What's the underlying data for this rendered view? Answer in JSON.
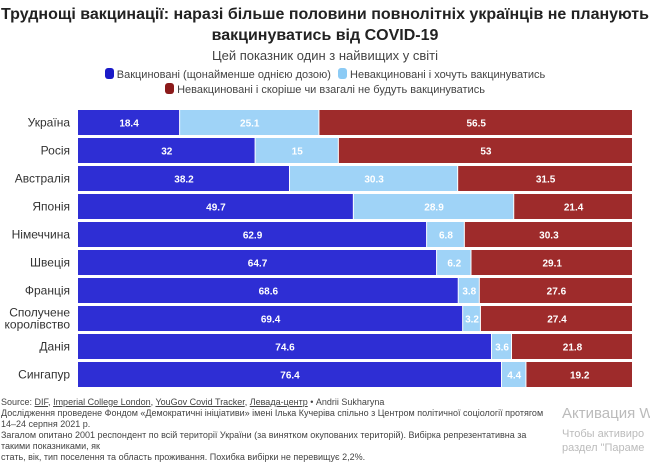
{
  "chart_data": {
    "type": "bar",
    "orientation": "horizontal",
    "stacked": true,
    "title": "Труднощі вакцинації: наразі більше половини повнолітніх українців не планують вакцинуватись від COVID-19",
    "subtitle": "Цей показник один з найвищих у світі",
    "categories": [
      "Україна",
      "Росія",
      "Австралія",
      "Японія",
      "Німеччина",
      "Швеція",
      "Франція",
      "Сполучене королівство",
      "Данія",
      "Сингапур"
    ],
    "series": [
      {
        "name": "Вакциновані (щонайменше однією дозою)",
        "color": "#2e2ed4",
        "values": [
          18.4,
          32,
          38.2,
          49.7,
          62.9,
          64.7,
          68.6,
          69.4,
          74.6,
          76.4
        ]
      },
      {
        "name": "Невакциновані і хочуть вакцинуватись",
        "color": "#9fd3f7",
        "values": [
          25.1,
          15,
          30.3,
          28.9,
          6.8,
          6.2,
          3.8,
          3.2,
          3.6,
          4.4
        ]
      },
      {
        "name": "Невакциновані і скоріше чи взагалі не будуть вакцинуватись",
        "color": "#9e2b2b",
        "values": [
          56.5,
          53,
          31.5,
          21.4,
          30.3,
          29.1,
          27.6,
          27.4,
          21.8,
          19.2
        ]
      }
    ],
    "xlim": [
      0,
      100
    ],
    "legend": "top",
    "grid": false
  },
  "footer": {
    "source_label": "Source:",
    "sources": [
      "DIF",
      "Imperial College London",
      "YouGov Covid Tracker",
      "Левада-центр"
    ],
    "author": "• Andrii Sukharyna",
    "note1": "Дослідження проведене Фондом «Демократичні ініціативи» імені Ількa Кучеріва спільно з Центром політичної соціології протягом 14–24 серпня 2021 р.",
    "note2": "Загалом опитано 2001 респондент по всій території України (за винятком окупованих територій). Вибірка репрезентативна за такими показниками, як",
    "note3": "стать, вік, тип поселення та область проживання. Похибка вибірки не перевищує 2,2%."
  },
  "watermark": {
    "line1": "Активация W",
    "line2": "Чтобы активиро",
    "line3": "раздел \"Параме"
  }
}
